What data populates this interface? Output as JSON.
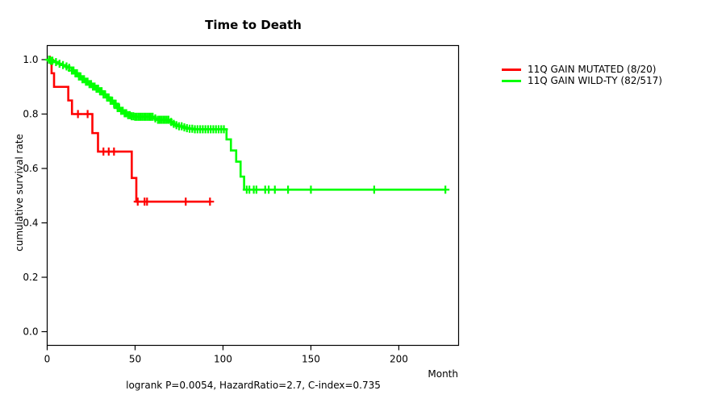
{
  "title": "Time to Death",
  "annotation": "logrank P=0.0054, HazardRatio=2.7, C-index=0.735",
  "x_axis_label": "Month",
  "y_axis_label": "cumulative survival rate",
  "colors": {
    "mutated": "#FF0000",
    "wildtype": "#00FF00",
    "axis": "#000000",
    "background": "#FFFFFF"
  },
  "legend": {
    "items": [
      {
        "label": "11Q GAIN MUTATED (8/20)",
        "color": "#FF0000"
      },
      {
        "label": "11Q GAIN WILD-TY (82/517)",
        "color": "#00FF00"
      }
    ]
  },
  "chart_data": {
    "type": "line",
    "subtype": "kaplan-meier-step",
    "title": "Time to Death",
    "xlabel": "Month",
    "ylabel": "cumulative survival rate",
    "xlim": [
      0,
      234
    ],
    "ylim": [
      0,
      1
    ],
    "xticks": [
      0,
      50,
      100,
      150,
      200
    ],
    "yticks": [
      0.0,
      0.2,
      0.4,
      0.6,
      0.8,
      1.0
    ],
    "grid": false,
    "legend_position": "right-outside",
    "annotation": "logrank P=0.0054, HazardRatio=2.7, C-index=0.735",
    "series": [
      {
        "name": "11Q GAIN MUTATED (8/20)",
        "events": "8/20",
        "color": "#FF0000",
        "steps": [
          [
            0,
            1.0
          ],
          [
            2.5,
            0.95
          ],
          [
            3.9,
            0.9
          ],
          [
            12,
            0.85
          ],
          [
            14.1,
            0.8
          ],
          [
            25.7,
            0.73
          ],
          [
            28.9,
            0.662
          ],
          [
            48.1,
            0.565
          ],
          [
            50.7,
            0.478
          ],
          [
            92.6,
            0.478
          ]
        ],
        "censor_times": [
          1.5,
          17.5,
          23,
          32,
          35,
          38,
          51.5,
          55.4,
          56.8,
          78.8,
          92.6
        ]
      },
      {
        "name": "11Q GAIN WILD-TY (82/517)",
        "events": "82/517",
        "color": "#00FF00",
        "steps": [
          [
            0,
            1.0
          ],
          [
            2,
            0.996
          ],
          [
            4,
            0.991
          ],
          [
            6,
            0.985
          ],
          [
            8,
            0.98
          ],
          [
            10,
            0.975
          ],
          [
            12,
            0.97
          ],
          [
            14,
            0.96
          ],
          [
            16,
            0.95
          ],
          [
            18,
            0.938
          ],
          [
            20,
            0.928
          ],
          [
            22,
            0.919
          ],
          [
            24,
            0.91
          ],
          [
            26,
            0.901
          ],
          [
            28,
            0.893
          ],
          [
            30,
            0.884
          ],
          [
            32,
            0.872
          ],
          [
            34,
            0.861
          ],
          [
            36,
            0.849
          ],
          [
            38,
            0.838
          ],
          [
            40,
            0.822
          ],
          [
            42,
            0.812
          ],
          [
            44,
            0.803
          ],
          [
            46,
            0.796
          ],
          [
            48,
            0.792
          ],
          [
            50,
            0.79
          ],
          [
            61,
            0.784
          ],
          [
            62.5,
            0.779
          ],
          [
            69.5,
            0.771
          ],
          [
            71,
            0.764
          ],
          [
            73,
            0.759
          ],
          [
            75,
            0.755
          ],
          [
            77,
            0.751
          ],
          [
            79,
            0.748
          ],
          [
            81,
            0.746
          ],
          [
            83,
            0.744
          ],
          [
            102,
            0.707
          ],
          [
            104.5,
            0.666
          ],
          [
            107.5,
            0.625
          ],
          [
            110,
            0.57
          ],
          [
            112,
            0.522
          ],
          [
            227,
            0.522
          ]
        ],
        "censor_times": [
          1,
          2,
          3,
          5,
          7,
          9,
          11,
          12.5,
          14,
          15,
          16,
          17,
          18,
          19,
          20,
          21,
          22,
          23,
          24,
          25,
          26,
          27,
          28,
          29,
          30,
          31,
          32,
          33,
          34,
          35,
          36,
          37,
          38,
          39,
          40,
          41,
          42,
          43,
          44,
          45,
          46,
          47,
          48,
          49,
          50,
          51,
          52,
          53,
          54,
          55,
          56,
          57,
          58,
          59,
          60,
          61.5,
          63,
          64,
          65,
          66,
          67,
          68,
          69,
          70.5,
          72,
          73.5,
          75,
          76.5,
          78,
          79.5,
          81,
          82.5,
          84,
          85.5,
          87,
          88.5,
          90,
          91.5,
          93,
          94.5,
          96,
          97.5,
          99,
          100.5,
          113.5,
          115,
          117.5,
          119,
          124,
          126,
          129.5,
          137,
          150,
          186,
          226.5
        ]
      }
    ]
  }
}
